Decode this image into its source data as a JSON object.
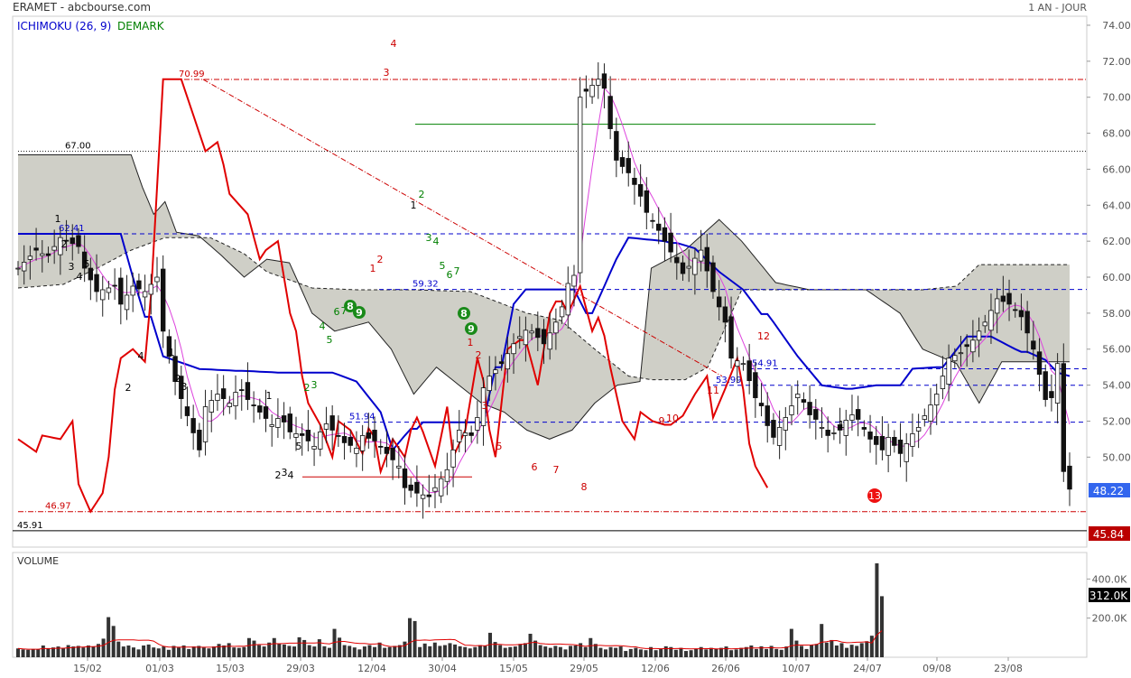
{
  "header": {
    "title": "ERAMET - abcbourse.com",
    "period": "1 AN - JOUR",
    "indicator_ichimoku": "ICHIMOKU (26, 9)",
    "indicator_demark": "DEMARK",
    "volume_label": "VOLUME"
  },
  "colors": {
    "ichimoku": "#0000cc",
    "demark": "#008000",
    "red_line": "#e00000",
    "magenta_line": "#dd44dd",
    "cloud": "#cfcfc7",
    "price_badge": "#3366ee",
    "low_badge": "#bb0000",
    "volume_badge": "#000000"
  },
  "chart_data": [
    {
      "type": "candlestick",
      "yaxis_ticks": [
        "74.00",
        "72.00",
        "70.00",
        "68.00",
        "66.00",
        "64.00",
        "62.00",
        "60.00",
        "58.00",
        "56.00",
        "54.00",
        "52.00",
        "50.00"
      ],
      "ylim": [
        45.0,
        74.5
      ],
      "xaxis_ticks": [
        "15/02",
        "01/03",
        "15/03",
        "29/03",
        "12/04",
        "30/04",
        "15/05",
        "29/05",
        "12/06",
        "26/06",
        "10/07",
        "24/07",
        "09/08",
        "23/08"
      ],
      "last_price": "48.22",
      "low_price": "45.84",
      "levels": [
        {
          "label": "70.99",
          "value": 70.99,
          "style": "red-dashdot"
        },
        {
          "label": "67.00",
          "value": 67.0,
          "style": "black-dotted"
        },
        {
          "label": "62.41",
          "value": 62.41,
          "style": "blue-dashed"
        },
        {
          "label": "59.32",
          "value": 59.32,
          "style": "blue-dashed"
        },
        {
          "label": "54.91",
          "value": 54.91,
          "style": "blue-dashed"
        },
        {
          "label": "53.99",
          "value": 53.99,
          "style": "blue-dashed"
        },
        {
          "label": "51.94",
          "value": 51.94,
          "style": "blue-dashed"
        },
        {
          "label": "46.97",
          "value": 46.97,
          "style": "red-dashdot"
        },
        {
          "label": "45.91",
          "value": 45.91,
          "style": "black-solid"
        }
      ],
      "annotations": [
        {
          "text": "4",
          "color": "red"
        },
        {
          "text": "3",
          "color": "red"
        },
        {
          "text": "2",
          "color": "red"
        },
        {
          "text": "1",
          "color": "red"
        },
        {
          "text": "8",
          "color": "green"
        },
        {
          "text": "9",
          "color": "green"
        },
        {
          "text": "13",
          "color": "red"
        },
        {
          "text": "12",
          "color": "red"
        },
        {
          "text": "11",
          "color": "red"
        },
        {
          "text": "10",
          "color": "red"
        },
        {
          "text": "9",
          "color": "red"
        },
        {
          "text": "8",
          "color": "red"
        },
        {
          "text": "7",
          "color": "red"
        },
        {
          "text": "6",
          "color": "red"
        },
        {
          "text": "5",
          "color": "red"
        }
      ]
    },
    {
      "type": "bar",
      "title": "VOLUME",
      "yaxis_ticks": [
        "400.0K",
        "200.0K"
      ],
      "ylim": [
        0,
        480
      ],
      "last_volume": "312.0K",
      "values": [
        45,
        40,
        38,
        42,
        40,
        60,
        45,
        50,
        55,
        48,
        62,
        55,
        58,
        50,
        60,
        55,
        68,
        95,
        205,
        160,
        80,
        55,
        60,
        50,
        40,
        60,
        65,
        50,
        45,
        55,
        38,
        58,
        50,
        60,
        42,
        55,
        58,
        50,
        45,
        55,
        68,
        60,
        72,
        50,
        48,
        52,
        98,
        85,
        62,
        55,
        75,
        98,
        70,
        65,
        58,
        55,
        102,
        88,
        62,
        55,
        92,
        56,
        48,
        145,
        100,
        62,
        58,
        50,
        40,
        55,
        62,
        52,
        75,
        48,
        52,
        58,
        62,
        80,
        200,
        185,
        52,
        70,
        56,
        75,
        58,
        62,
        72,
        65,
        56,
        52,
        45,
        52,
        62,
        58,
        125,
        78,
        62,
        48,
        52,
        55,
        68,
        72,
        120,
        85,
        62,
        55,
        48,
        58,
        52,
        40,
        58,
        60,
        72,
        52,
        98,
        68,
        48,
        40,
        52,
        48,
        55,
        32,
        42,
        48,
        40,
        36,
        52,
        36,
        44,
        56,
        52,
        38,
        48,
        32,
        36,
        42,
        52,
        40,
        48,
        42,
        48,
        55,
        36,
        40,
        48,
        52,
        60,
        42,
        56,
        42,
        58,
        42,
        38,
        55,
        145,
        85,
        58,
        42,
        62,
        68,
        170,
        75,
        88,
        60,
        72,
        48,
        64,
        58,
        72,
        82,
        110,
        480,
        312
      ]
    }
  ]
}
